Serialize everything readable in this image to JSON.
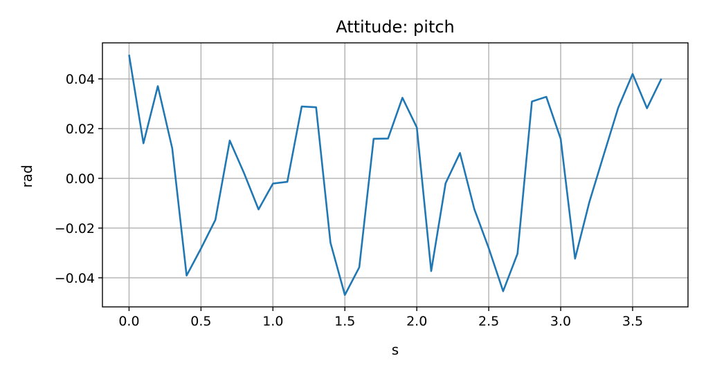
{
  "chart_data": {
    "type": "line",
    "title": "Attitude: pitch",
    "xlabel": "s",
    "ylabel": "rad",
    "xlim": [
      -0.185,
      3.885
    ],
    "ylim": [
      -0.0517,
      0.0545
    ],
    "grid": true,
    "x_ticks": [
      0.0,
      0.5,
      1.0,
      1.5,
      2.0,
      2.5,
      3.0,
      3.5
    ],
    "x_tick_labels": [
      "0.0",
      "0.5",
      "1.0",
      "1.5",
      "2.0",
      "2.5",
      "3.0",
      "3.5"
    ],
    "y_ticks": [
      -0.04,
      -0.02,
      0.0,
      0.02,
      0.04
    ],
    "y_tick_labels": [
      "−0.04",
      "−0.02",
      "0.00",
      "0.02",
      "0.04"
    ],
    "series": [
      {
        "color": "#1f77b4",
        "x": [
          0.0,
          0.1,
          0.2,
          0.3,
          0.4,
          0.5,
          0.6,
          0.7,
          0.8,
          0.9,
          1.0,
          1.1,
          1.2,
          1.3,
          1.4,
          1.5,
          1.6,
          1.7,
          1.8,
          1.9,
          2.0,
          2.1,
          2.2,
          2.3,
          2.4,
          2.5,
          2.6,
          2.7,
          2.8,
          2.9,
          3.0,
          3.1,
          3.2,
          3.3,
          3.4,
          3.5,
          3.6,
          3.7
        ],
        "y": [
          0.0497,
          0.0141,
          0.0371,
          0.0121,
          -0.0391,
          -0.0282,
          -0.0167,
          0.0152,
          0.002,
          -0.0125,
          -0.0021,
          -0.0014,
          0.0289,
          0.0286,
          -0.0259,
          -0.0469,
          -0.0358,
          0.0159,
          0.016,
          0.0324,
          0.0205,
          -0.0373,
          -0.002,
          0.0102,
          -0.0124,
          -0.0281,
          -0.0454,
          -0.0303,
          0.0309,
          0.0328,
          0.0159,
          -0.0323,
          -0.0094,
          0.0096,
          0.0284,
          0.042,
          0.0282,
          0.0401
        ]
      }
    ]
  }
}
